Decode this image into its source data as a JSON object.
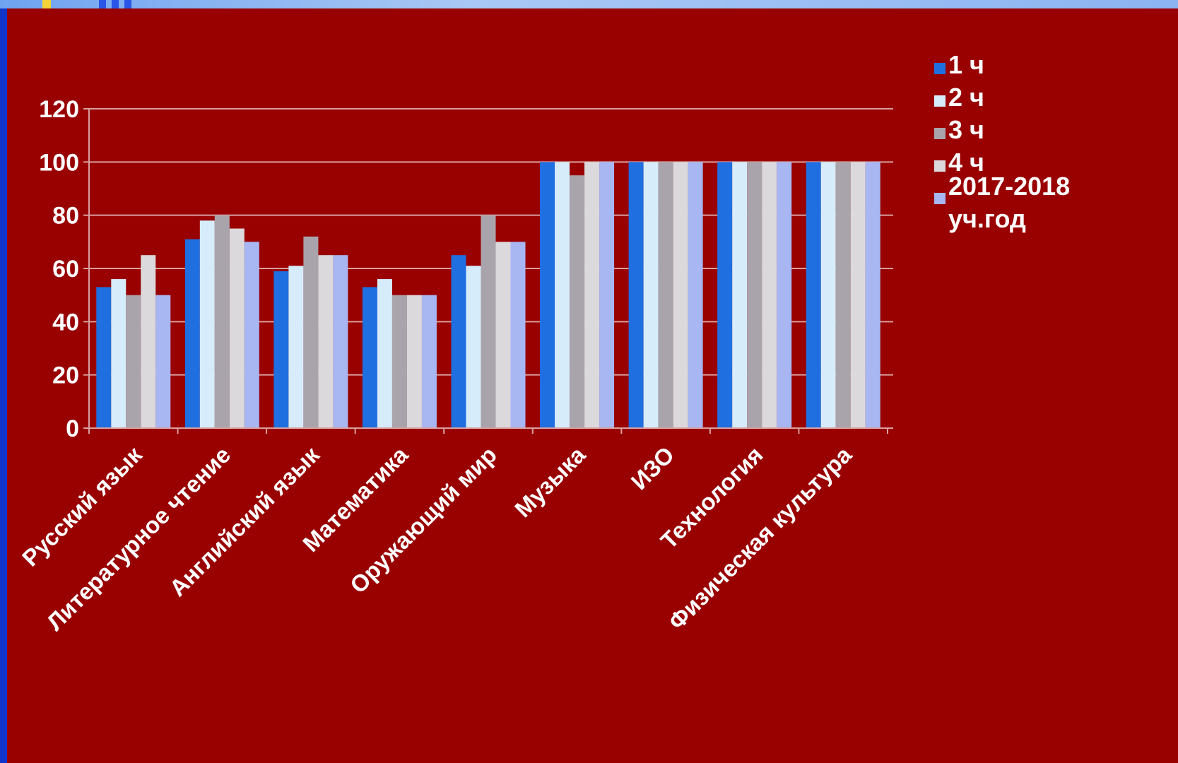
{
  "chart_data": {
    "type": "bar",
    "categories": [
      "Русский язык",
      "Литературное чтение",
      "Английский язык",
      "Математика",
      "Оружающий мир",
      "Музыка",
      "ИЗО",
      "Технология",
      "Физическая культура"
    ],
    "series": [
      {
        "name": "1 ч",
        "color": "#1f6fe0",
        "values": [
          53,
          71,
          59,
          53,
          65,
          100,
          100,
          100,
          100
        ]
      },
      {
        "name": "2 ч",
        "color": "#d6ecfa",
        "values": [
          56,
          78,
          61,
          56,
          61,
          100,
          100,
          100,
          100
        ]
      },
      {
        "name": "3 ч",
        "color": "#a9a4ab",
        "values": [
          50,
          80,
          72,
          50,
          80,
          95,
          100,
          100,
          100
        ]
      },
      {
        "name": "4 ч",
        "color": "#dcd9dc",
        "values": [
          65,
          75,
          65,
          50,
          70,
          100,
          100,
          100,
          100
        ]
      },
      {
        "name": "2017-2018 уч.год",
        "name_lines": [
          "2017-2018",
          "уч.год"
        ],
        "color": "#a8b6f2",
        "values": [
          50,
          70,
          65,
          50,
          70,
          100,
          100,
          100,
          100
        ]
      }
    ],
    "yticks": [
      "0",
      "20",
      "40",
      "60",
      "80",
      "100",
      "120"
    ],
    "ylim": [
      0,
      120
    ],
    "grid": true,
    "legend_position": "right",
    "title": "",
    "xlabel": "",
    "ylabel": ""
  },
  "colors": {
    "background": "#990000",
    "gridline": "#d9a0a0",
    "frame": "#1235c9"
  }
}
